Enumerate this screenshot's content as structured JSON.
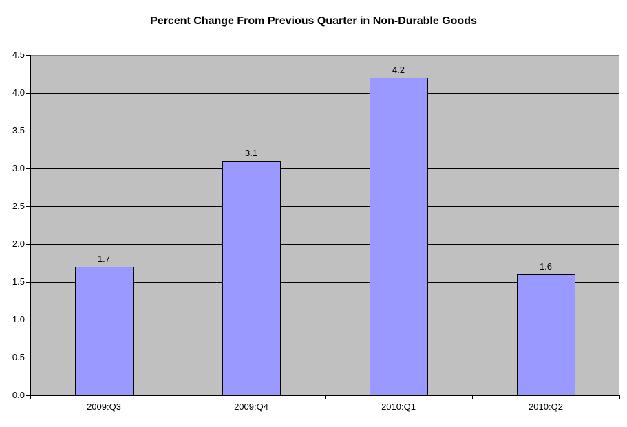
{
  "title": "Percent Change From Previous Quarter in Non-Durable Goods",
  "colors": {
    "background": "#FFFFFF",
    "plot_bg": "#C0C0C0",
    "plot_border": "#808080",
    "gridline": "#000000",
    "axis": "#000000",
    "bar_fill": "#9999FF",
    "bar_border": "#000000",
    "text": "#000000"
  },
  "chart_data": {
    "type": "bar",
    "title": "Percent Change From Previous Quarter in Non-Durable Goods",
    "categories": [
      "2009:Q3",
      "2009:Q4",
      "2010:Q1",
      "2010:Q2"
    ],
    "values": [
      1.7,
      3.1,
      4.2,
      1.6
    ],
    "data_labels": [
      "1.7",
      "3.1",
      "4.2",
      "1.6"
    ],
    "xlabel": "",
    "ylabel": "",
    "ylim": [
      0,
      4.5
    ],
    "ytick_step": 0.5,
    "ytick_labels": [
      "0.0",
      "0.5",
      "1.0",
      "1.5",
      "2.0",
      "2.5",
      "3.0",
      "3.5",
      "4.0",
      "4.5"
    ],
    "grid": true,
    "legend": false
  }
}
